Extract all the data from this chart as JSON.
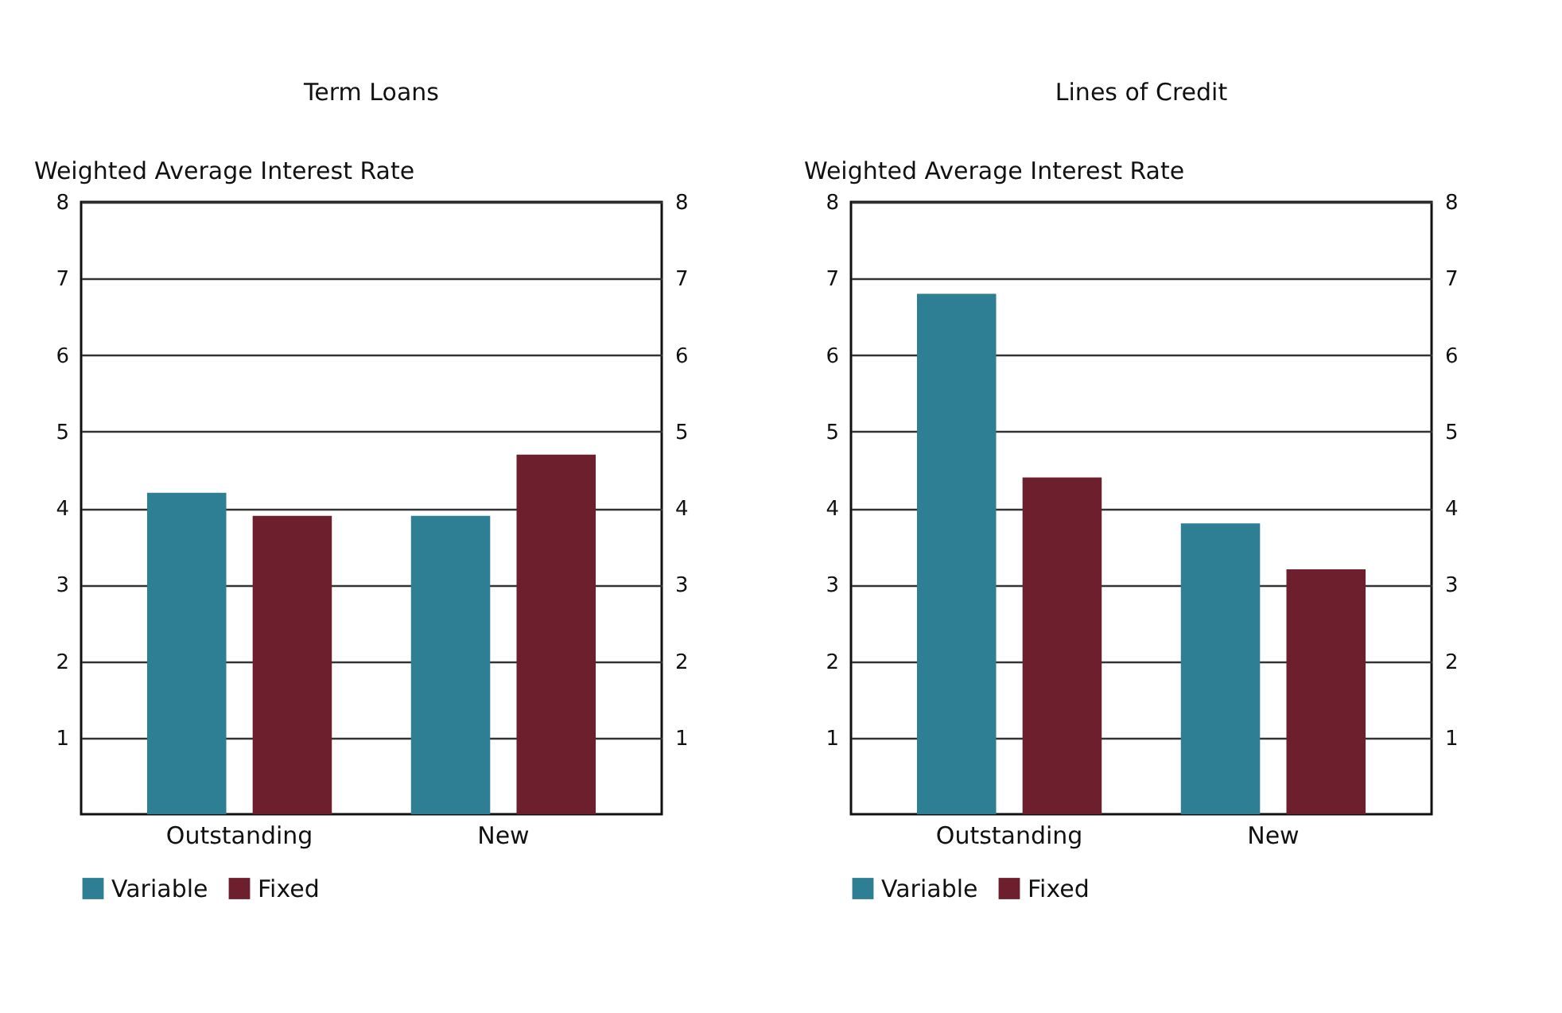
{
  "chart_data": [
    {
      "type": "bar",
      "title": "Term Loans",
      "ylabel": "Weighted Average Interest Rate",
      "categories": [
        "Outstanding",
        "New"
      ],
      "series": [
        {
          "name": "Variable",
          "color": "#2e7f93",
          "values": [
            4.2,
            3.9
          ]
        },
        {
          "name": "Fixed",
          "color": "#6e1f2e",
          "values": [
            3.9,
            4.7
          ]
        }
      ],
      "ylim": [
        0,
        8
      ],
      "yticks": [
        1,
        2,
        3,
        4,
        5,
        6,
        7,
        8
      ],
      "y2lim": [
        0,
        8
      ],
      "y2ticks": [
        1,
        2,
        3,
        4,
        5,
        6,
        7,
        8
      ],
      "grid": "y",
      "legend": "bottom"
    },
    {
      "type": "bar",
      "title": "Lines of Credit",
      "ylabel": "Weighted Average Interest Rate",
      "categories": [
        "Outstanding",
        "New"
      ],
      "series": [
        {
          "name": "Variable",
          "color": "#2e7f93",
          "values": [
            6.8,
            3.8
          ]
        },
        {
          "name": "Fixed",
          "color": "#6e1f2e",
          "values": [
            4.4,
            3.2
          ]
        }
      ],
      "ylim": [
        0,
        8
      ],
      "yticks": [
        1,
        2,
        3,
        4,
        5,
        6,
        7,
        8
      ],
      "y2lim": [
        0,
        8
      ],
      "y2ticks": [
        1,
        2,
        3,
        4,
        5,
        6,
        7,
        8
      ],
      "grid": "y",
      "legend": "bottom"
    }
  ]
}
